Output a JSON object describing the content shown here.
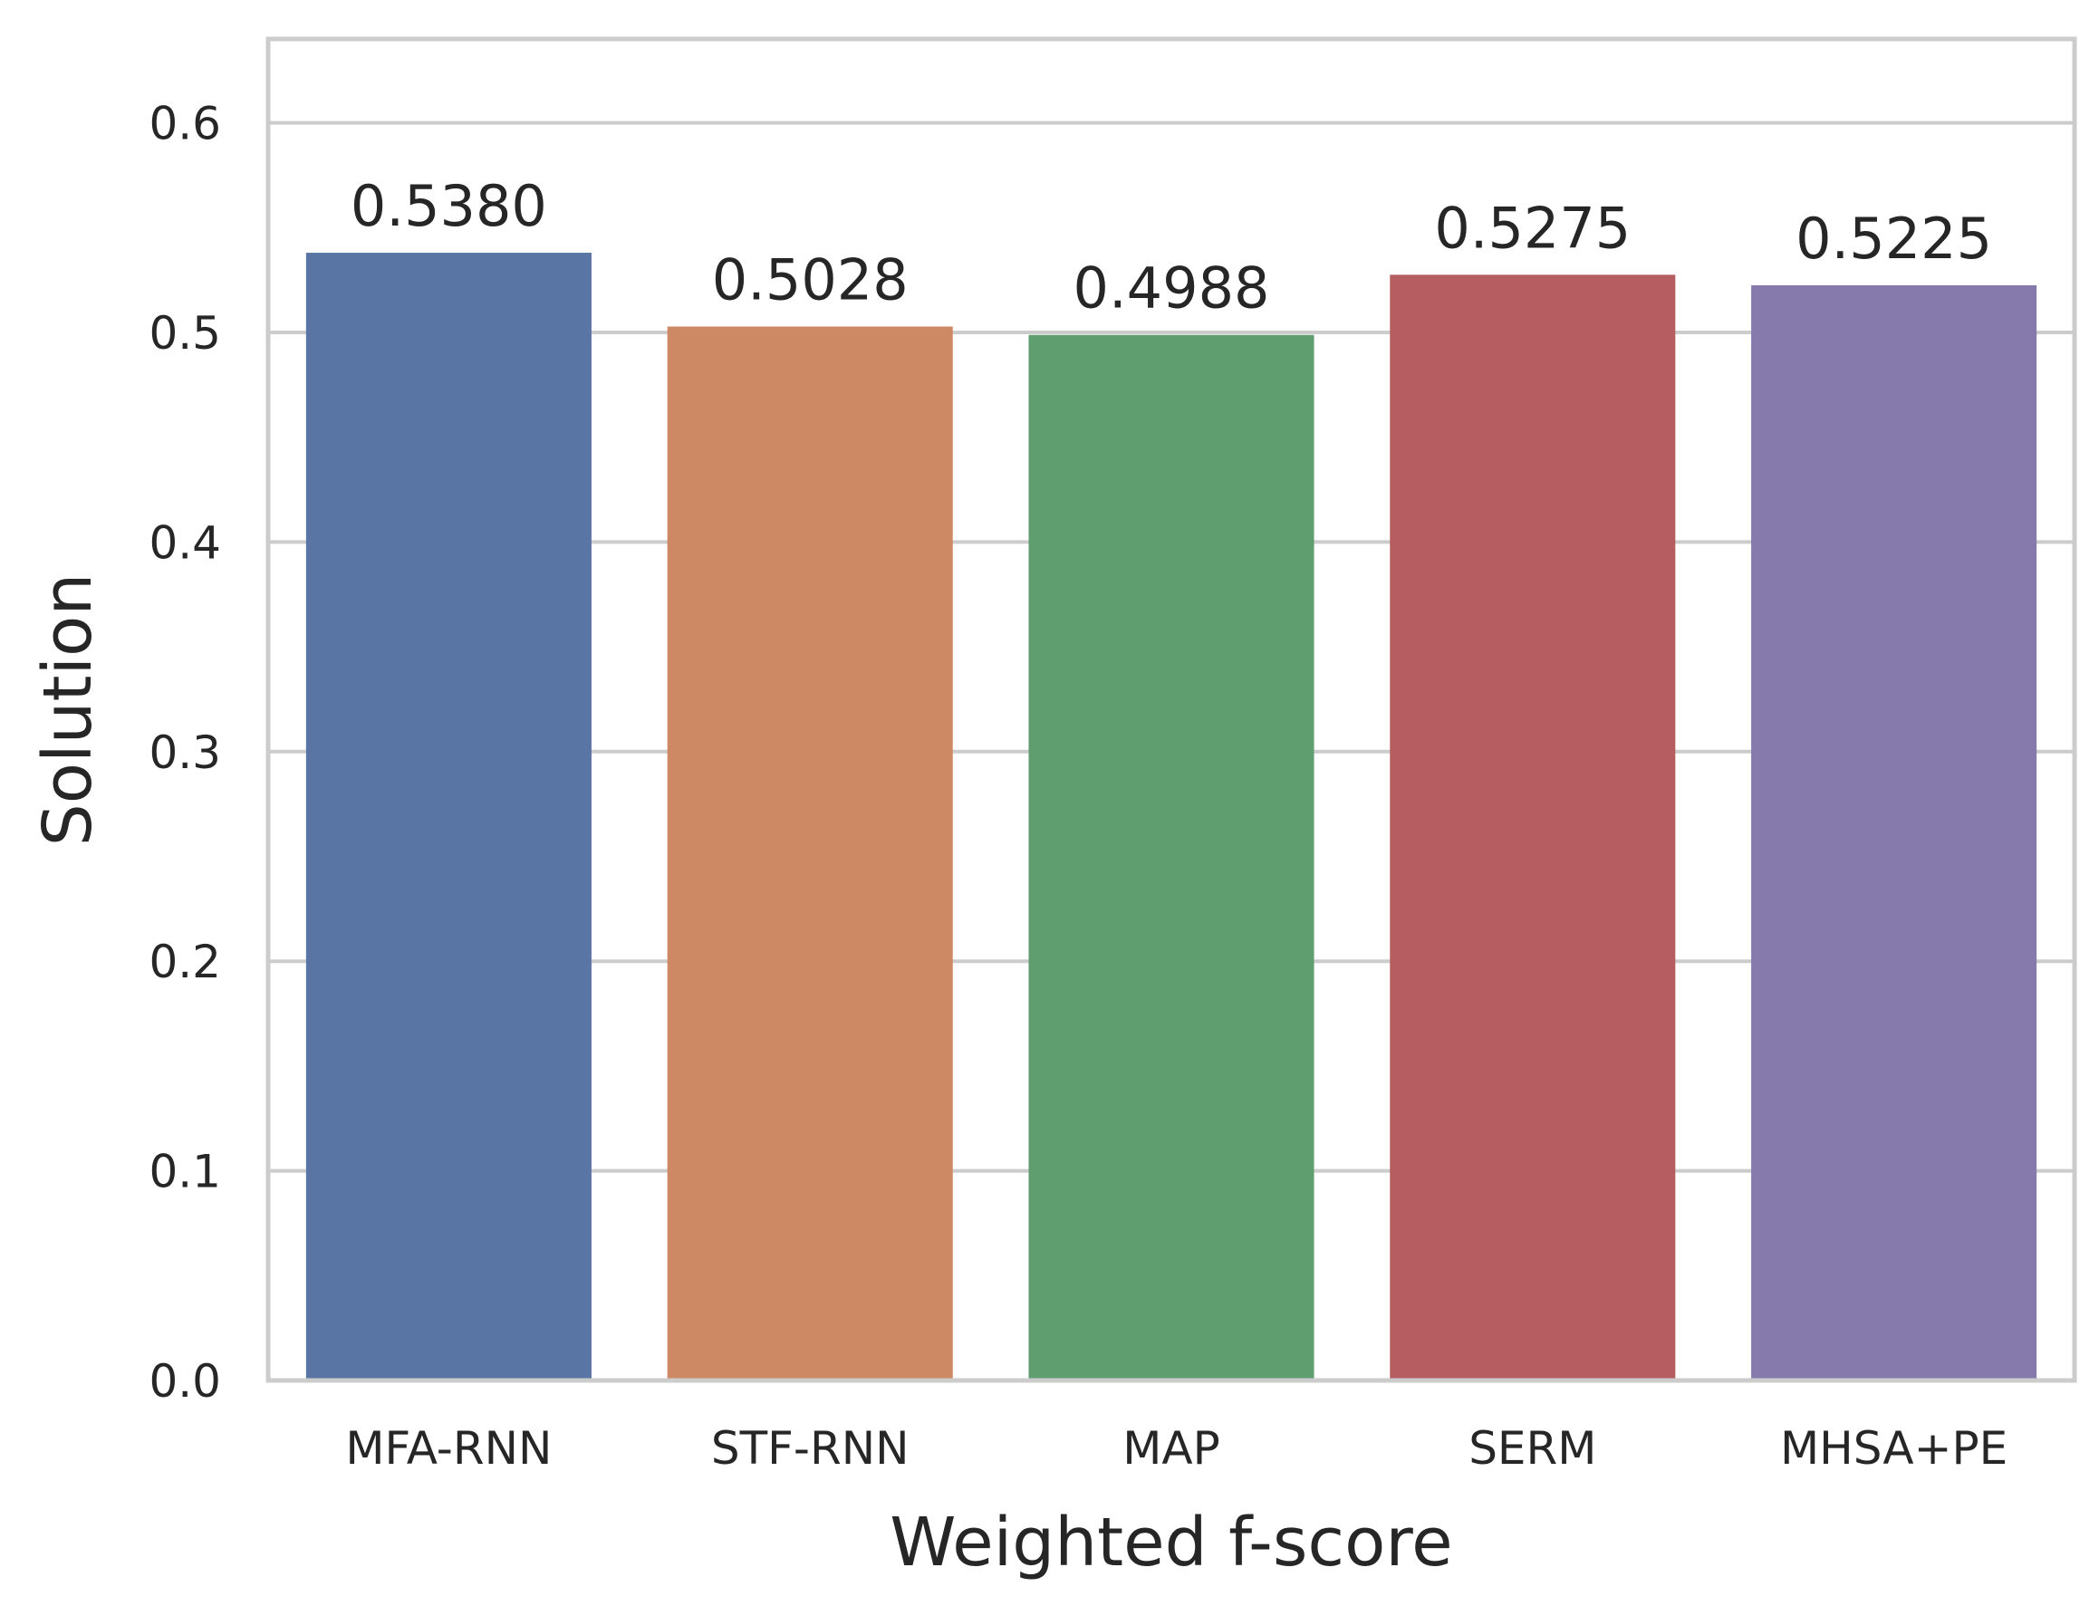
{
  "chart_data": {
    "type": "bar",
    "categories": [
      "MFA-RNN",
      "STF-RNN",
      "MAP",
      "SERM",
      "MHSA+PE"
    ],
    "values": [
      0.538,
      0.5028,
      0.4988,
      0.5275,
      0.5225
    ],
    "data_labels": [
      "0.5380",
      "0.5028",
      "0.4988",
      "0.5275",
      "0.5225"
    ],
    "colors": [
      "#5975a4",
      "#cc8963",
      "#5f9e6e",
      "#b55d60",
      "#857aab"
    ],
    "xlabel": "Weighted f-score",
    "ylabel": "Solution",
    "ylim": [
      0,
      0.64
    ],
    "yticks": [
      0.0,
      0.1,
      0.2,
      0.3,
      0.4,
      0.5,
      0.6
    ],
    "ytick_labels": [
      "0.0",
      "0.1",
      "0.2",
      "0.3",
      "0.4",
      "0.5",
      "0.6"
    ],
    "grid": "horizontal",
    "background": "#ffffff",
    "grid_color": "#cccccc"
  }
}
